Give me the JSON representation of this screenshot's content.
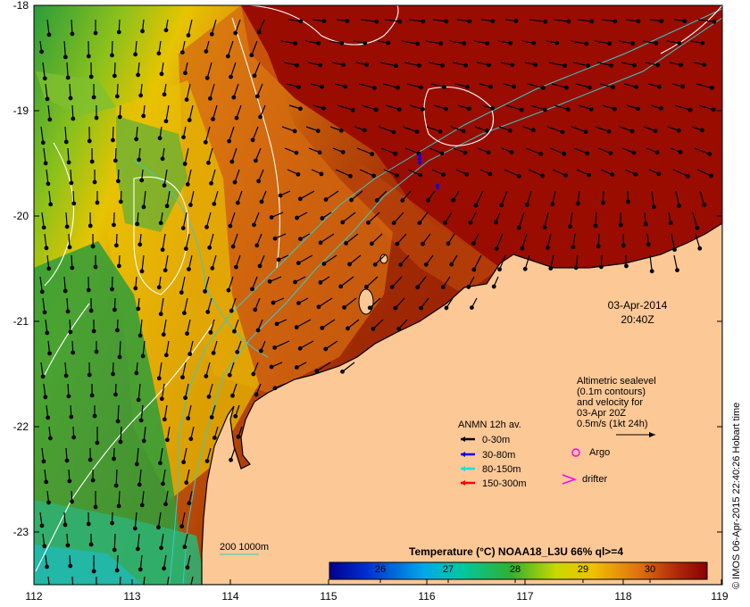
{
  "map": {
    "date": "03-Apr-2014",
    "time": "20:40Z",
    "lat_ticks": [
      "-18",
      "-19",
      "-20",
      "-21",
      "-22",
      "-23"
    ],
    "lon_ticks": [
      "112",
      "113",
      "114",
      "115",
      "116",
      "117",
      "118",
      "119"
    ],
    "lat_range": [
      -23.5,
      -18.0
    ],
    "lon_range": [
      112.0,
      119.0
    ]
  },
  "altimetry": {
    "line1": "Altimetric sealevel",
    "line2": "(0.1m contours)",
    "line3": "and velocity for",
    "line4": "03-Apr 20Z",
    "line5": "0.5m/s (1kt 24h)"
  },
  "anmn": {
    "title": "ANMN 12h av.",
    "items": [
      {
        "label": "0-30m",
        "color": "#000000"
      },
      {
        "label": "30-80m",
        "color": "#0000ff"
      },
      {
        "label": "80-150m",
        "color": "#00e5e5"
      },
      {
        "label": "150-300m",
        "color": "#ff0000"
      }
    ]
  },
  "markers": {
    "argo": "Argo",
    "drifter": "drifter",
    "argo_color": "#ff00ff",
    "drifter_color": "#ff00ff"
  },
  "bathy": {
    "label": "200  1000m",
    "color": "#33cccc"
  },
  "colorbar": {
    "title": "Temperature (°C) NOAA18_L3U 66% ql>=4",
    "ticks": [
      "26",
      "27",
      "28",
      "29",
      "30"
    ],
    "min": 25,
    "max": 30.6
  },
  "credit": "© IMOS 06-Apr-2015 22:40:26 Hobart time",
  "colors": {
    "land": "#fcc896",
    "sea_warm": "#a50f00",
    "sea_mid": "#d98a1a",
    "sea_cool": "#2ea63a"
  }
}
